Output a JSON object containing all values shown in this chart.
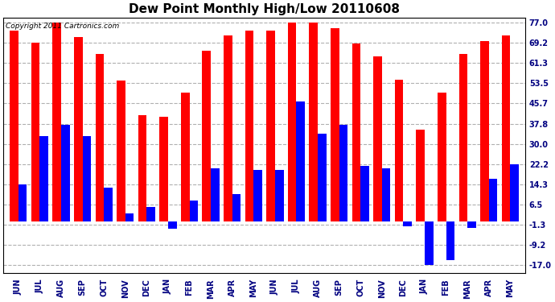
{
  "title": "Dew Point Monthly High/Low 20110608",
  "copyright": "Copyright 2011 Cartronics.com",
  "categories": [
    "JUN",
    "JUL",
    "AUG",
    "SEP",
    "OCT",
    "NOV",
    "DEC",
    "JAN",
    "FEB",
    "MAR",
    "APR",
    "MAY",
    "JUN",
    "JUL",
    "AUG",
    "SEP",
    "OCT",
    "NOV",
    "DEC",
    "JAN",
    "FEB",
    "MAR",
    "APR",
    "MAY"
  ],
  "highs": [
    74.0,
    69.2,
    77.0,
    71.5,
    65.0,
    54.5,
    41.0,
    40.5,
    50.0,
    66.0,
    72.0,
    74.0,
    74.0,
    77.0,
    77.0,
    75.0,
    69.0,
    64.0,
    55.0,
    35.5,
    50.0,
    65.0,
    70.0,
    72.0
  ],
  "lows": [
    14.3,
    33.0,
    37.5,
    33.0,
    13.0,
    3.0,
    5.5,
    -3.0,
    8.0,
    20.5,
    10.5,
    20.0,
    20.0,
    46.5,
    34.0,
    37.5,
    21.5,
    20.5,
    -2.0,
    -17.0,
    -15.0,
    -2.5,
    16.5,
    22.0
  ],
  "high_color": "#ff0000",
  "low_color": "#0000ff",
  "background_color": "#ffffff",
  "grid_color": "#b0b0b0",
  "yticks": [
    77.0,
    69.2,
    61.3,
    53.5,
    45.7,
    37.8,
    30.0,
    22.2,
    14.3,
    6.5,
    -1.3,
    -9.2,
    -17.0
  ],
  "ylim": [
    -20.0,
    79.0
  ],
  "title_fontsize": 11,
  "copyright_fontsize": 6.5,
  "bar_width": 0.4
}
